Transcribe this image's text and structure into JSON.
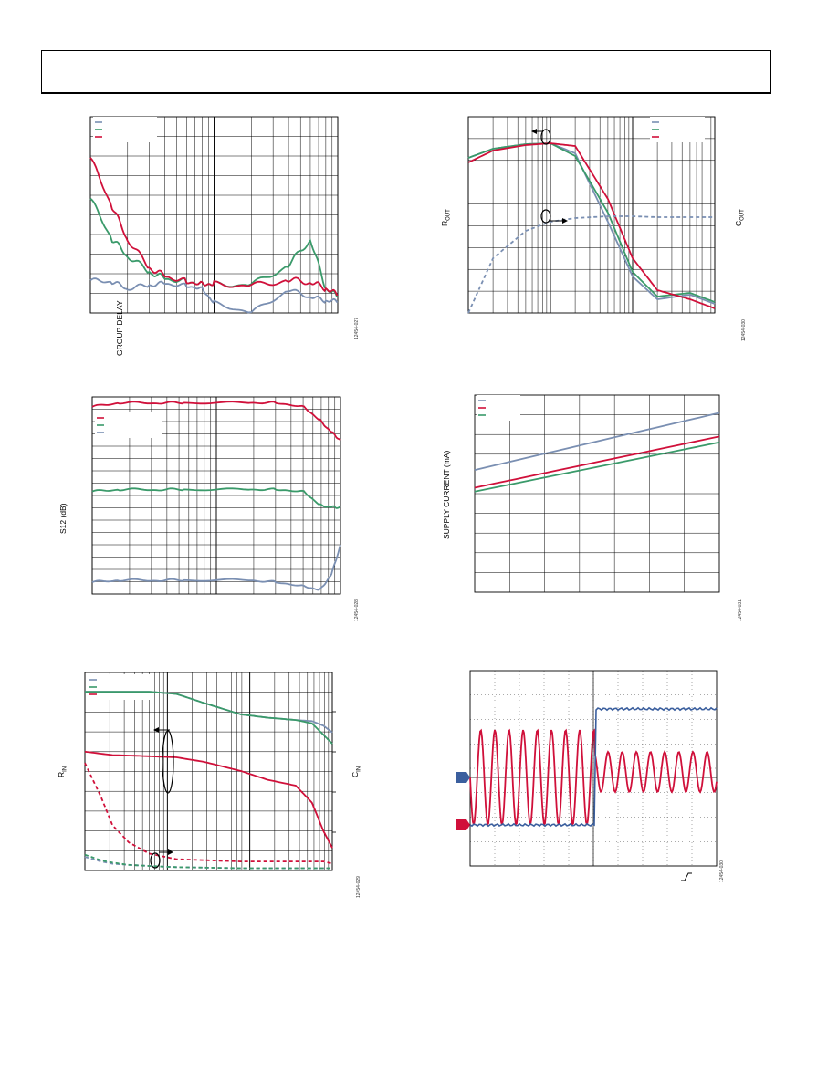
{
  "colors": {
    "blue": "#7a8fb2",
    "green": "#3a9a6a",
    "red": "#d0103a",
    "darkblue": "#3b5f9e",
    "grid": "#000000"
  },
  "charts": {
    "group_delay": {
      "ylabel": "GROUP DELAY",
      "code": "12454-027"
    },
    "rout_cout": {
      "ylabel_left_main": "R",
      "ylabel_left_sub": "OUT",
      "ylabel_right_main": "C",
      "ylabel_right_sub": "OUT",
      "code": "12454-030"
    },
    "s12": {
      "ylabel": "S12 (dB)",
      "code": "12454-028"
    },
    "supply_current": {
      "ylabel": "SUPPLY CURRENT (mA)",
      "code": "12454-031"
    },
    "rin_cin": {
      "ylabel_left_main": "R",
      "ylabel_left_sub": "IN",
      "ylabel_right_main": "C",
      "ylabel_right_sub": "IN",
      "code": "12454-029"
    },
    "scope": {
      "code": "12454-030"
    }
  },
  "chart_data": [
    {
      "type": "line",
      "title": "",
      "ylabel": "GROUP DELAY",
      "xscale": "log",
      "series": [
        {
          "color": "#7a8fb2",
          "x": [
            1,
            1.5,
            2,
            3,
            4,
            6,
            8,
            10,
            20,
            40,
            60,
            80,
            100
          ],
          "values": [
            40,
            38,
            30,
            34,
            36,
            33,
            30,
            12,
            0,
            28,
            20,
            15,
            14
          ]
        },
        {
          "color": "#3a9a6a",
          "x": [
            1,
            1.5,
            2,
            3,
            4,
            6,
            8,
            10,
            20,
            40,
            60,
            80,
            100
          ],
          "values": [
            140,
            90,
            70,
            50,
            42,
            38,
            36,
            35,
            34,
            58,
            90,
            30,
            20
          ]
        },
        {
          "color": "#d0103a",
          "x": [
            1,
            1.5,
            2,
            3,
            4,
            6,
            8,
            10,
            20,
            40,
            60,
            80,
            100
          ],
          "values": [
            190,
            130,
            90,
            55,
            45,
            38,
            36,
            35,
            33,
            40,
            38,
            30,
            22
          ]
        }
      ]
    },
    {
      "type": "line",
      "title": "",
      "xscale": "log",
      "series": [
        {
          "color": "#7a8fb2",
          "x": [
            1,
            2,
            5,
            10,
            20,
            50,
            100,
            200,
            500,
            1000
          ],
          "values": [
            170,
            180,
            185,
            186,
            175,
            100,
            40,
            15,
            20,
            10
          ]
        },
        {
          "color": "#3a9a6a",
          "x": [
            1,
            2,
            5,
            10,
            20,
            50,
            100,
            200,
            500,
            1000
          ],
          "values": [
            170,
            180,
            185,
            186,
            172,
            110,
            45,
            18,
            22,
            12
          ]
        },
        {
          "color": "#d0103a",
          "x": [
            1,
            2,
            5,
            10,
            20,
            50,
            100,
            200,
            500,
            1000
          ],
          "values": [
            165,
            178,
            184,
            186,
            183,
            125,
            60,
            25,
            15,
            5
          ]
        },
        {
          "color": "#7a8fb2",
          "dash": true,
          "x": [
            1,
            2,
            5,
            10,
            20,
            50,
            100,
            200,
            500,
            1000
          ],
          "values": [
            0,
            60,
            90,
            100,
            104,
            106,
            106,
            105,
            105,
            105
          ]
        }
      ]
    },
    {
      "type": "line",
      "title": "",
      "ylabel": "S12 (dB)",
      "xscale": "log",
      "series": [
        {
          "color": "#d0103a",
          "x": [
            1,
            2,
            5,
            10,
            50,
            100,
            200,
            300,
            400,
            500
          ],
          "values": [
            95,
            97,
            97,
            97,
            97,
            97,
            95,
            88,
            82,
            78
          ]
        },
        {
          "color": "#3a9a6a",
          "x": [
            1,
            2,
            5,
            10,
            50,
            100,
            200,
            300,
            400,
            500
          ],
          "values": [
            52,
            53,
            53,
            53,
            53,
            53,
            52,
            45,
            44,
            44
          ]
        },
        {
          "color": "#7a8fb2",
          "x": [
            1,
            2,
            5,
            10,
            50,
            100,
            200,
            300,
            400,
            500
          ],
          "values": [
            6,
            7,
            7,
            7,
            7,
            6,
            4,
            2,
            10,
            25
          ]
        }
      ]
    },
    {
      "type": "line",
      "title": "",
      "ylabel": "SUPPLY CURRENT (mA)",
      "series": [
        {
          "color": "#7a8fb2",
          "x": [
            0,
            1
          ],
          "values": [
            62,
            91
          ]
        },
        {
          "color": "#d0103a",
          "x": [
            0,
            1
          ],
          "values": [
            53,
            79
          ]
        },
        {
          "color": "#3a9a6a",
          "x": [
            0,
            1
          ],
          "values": [
            51,
            76
          ]
        }
      ]
    },
    {
      "type": "line",
      "title": "",
      "xscale": "log",
      "series": [
        {
          "color": "#7a8fb2",
          "x": [
            1,
            2,
            5,
            10,
            20,
            50,
            100,
            200,
            300,
            400,
            500
          ],
          "values": [
            158,
            158,
            158,
            156,
            148,
            138,
            135,
            133,
            132,
            128,
            122
          ]
        },
        {
          "color": "#3a9a6a",
          "x": [
            1,
            2,
            5,
            10,
            20,
            50,
            100,
            200,
            300,
            400,
            500
          ],
          "values": [
            158,
            158,
            158,
            156,
            148,
            138,
            135,
            133,
            130,
            120,
            112
          ]
        },
        {
          "color": "#d0103a",
          "x": [
            1,
            2,
            5,
            10,
            20,
            50,
            100,
            200,
            300,
            400,
            500
          ],
          "values": [
            105,
            102,
            101,
            100,
            96,
            88,
            80,
            75,
            60,
            35,
            20
          ]
        },
        {
          "color": "#d0103a",
          "dash": true,
          "x": [
            1,
            1.5,
            2,
            3,
            5,
            10,
            50,
            100,
            300,
            400,
            500
          ],
          "values": [
            95,
            65,
            40,
            25,
            15,
            10,
            8,
            8,
            8,
            8,
            6
          ]
        },
        {
          "color": "#7a8fb2",
          "dash": true,
          "x": [
            1,
            1.5,
            2,
            3,
            5,
            10,
            50,
            100,
            300,
            500
          ],
          "values": [
            12,
            8,
            6,
            5,
            4,
            3,
            2,
            2,
            2,
            2
          ]
        },
        {
          "color": "#3a9a6a",
          "dash": true,
          "x": [
            1,
            1.5,
            2,
            3,
            5,
            10,
            50,
            100,
            300,
            500
          ],
          "values": [
            14,
            9,
            7,
            5,
            4,
            3,
            2,
            2,
            2,
            2
          ]
        }
      ]
    }
  ]
}
